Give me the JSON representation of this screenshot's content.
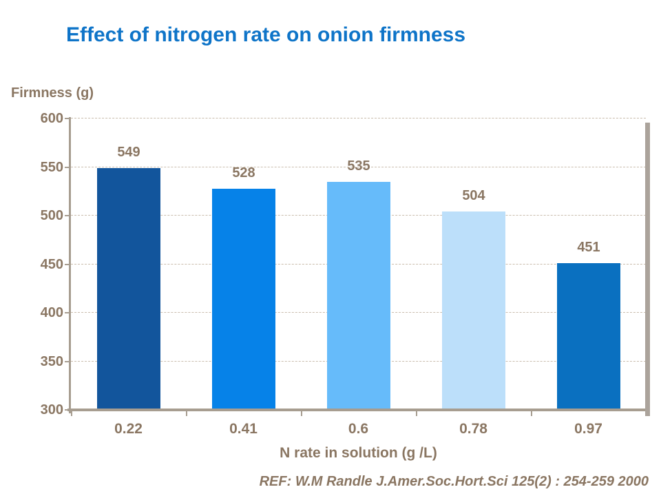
{
  "chart_data": {
    "type": "bar",
    "title": "Effect of nitrogen rate on onion firmness",
    "ylabel": "Firmness (g)",
    "xlabel": "N rate in solution (g /L)",
    "categories": [
      "0.22",
      "0.41",
      "0.6",
      "0.78",
      "0.97"
    ],
    "values": [
      549,
      528,
      535,
      504,
      451
    ],
    "bar_labels": [
      "549",
      "528",
      "535",
      "504",
      "451"
    ],
    "ylim": [
      300,
      600
    ],
    "yticks": [
      300,
      350,
      400,
      450,
      500,
      550,
      600
    ],
    "grid": "horizontal-dashed",
    "legend": "none",
    "reference": "REF: W.M Randle  J.Amer.Soc.Hort.Sci 125(2) : 254-259 2000"
  },
  "colors": {
    "title": "#0e74c8",
    "text": "#8a7662",
    "gridline": "#c9bcac",
    "axis": "#a79d90",
    "shadow": "#aba39b",
    "bars": [
      "#12559c",
      "#0682e8",
      "#66bbfa",
      "#bcdffa",
      "#0a70c0"
    ]
  }
}
